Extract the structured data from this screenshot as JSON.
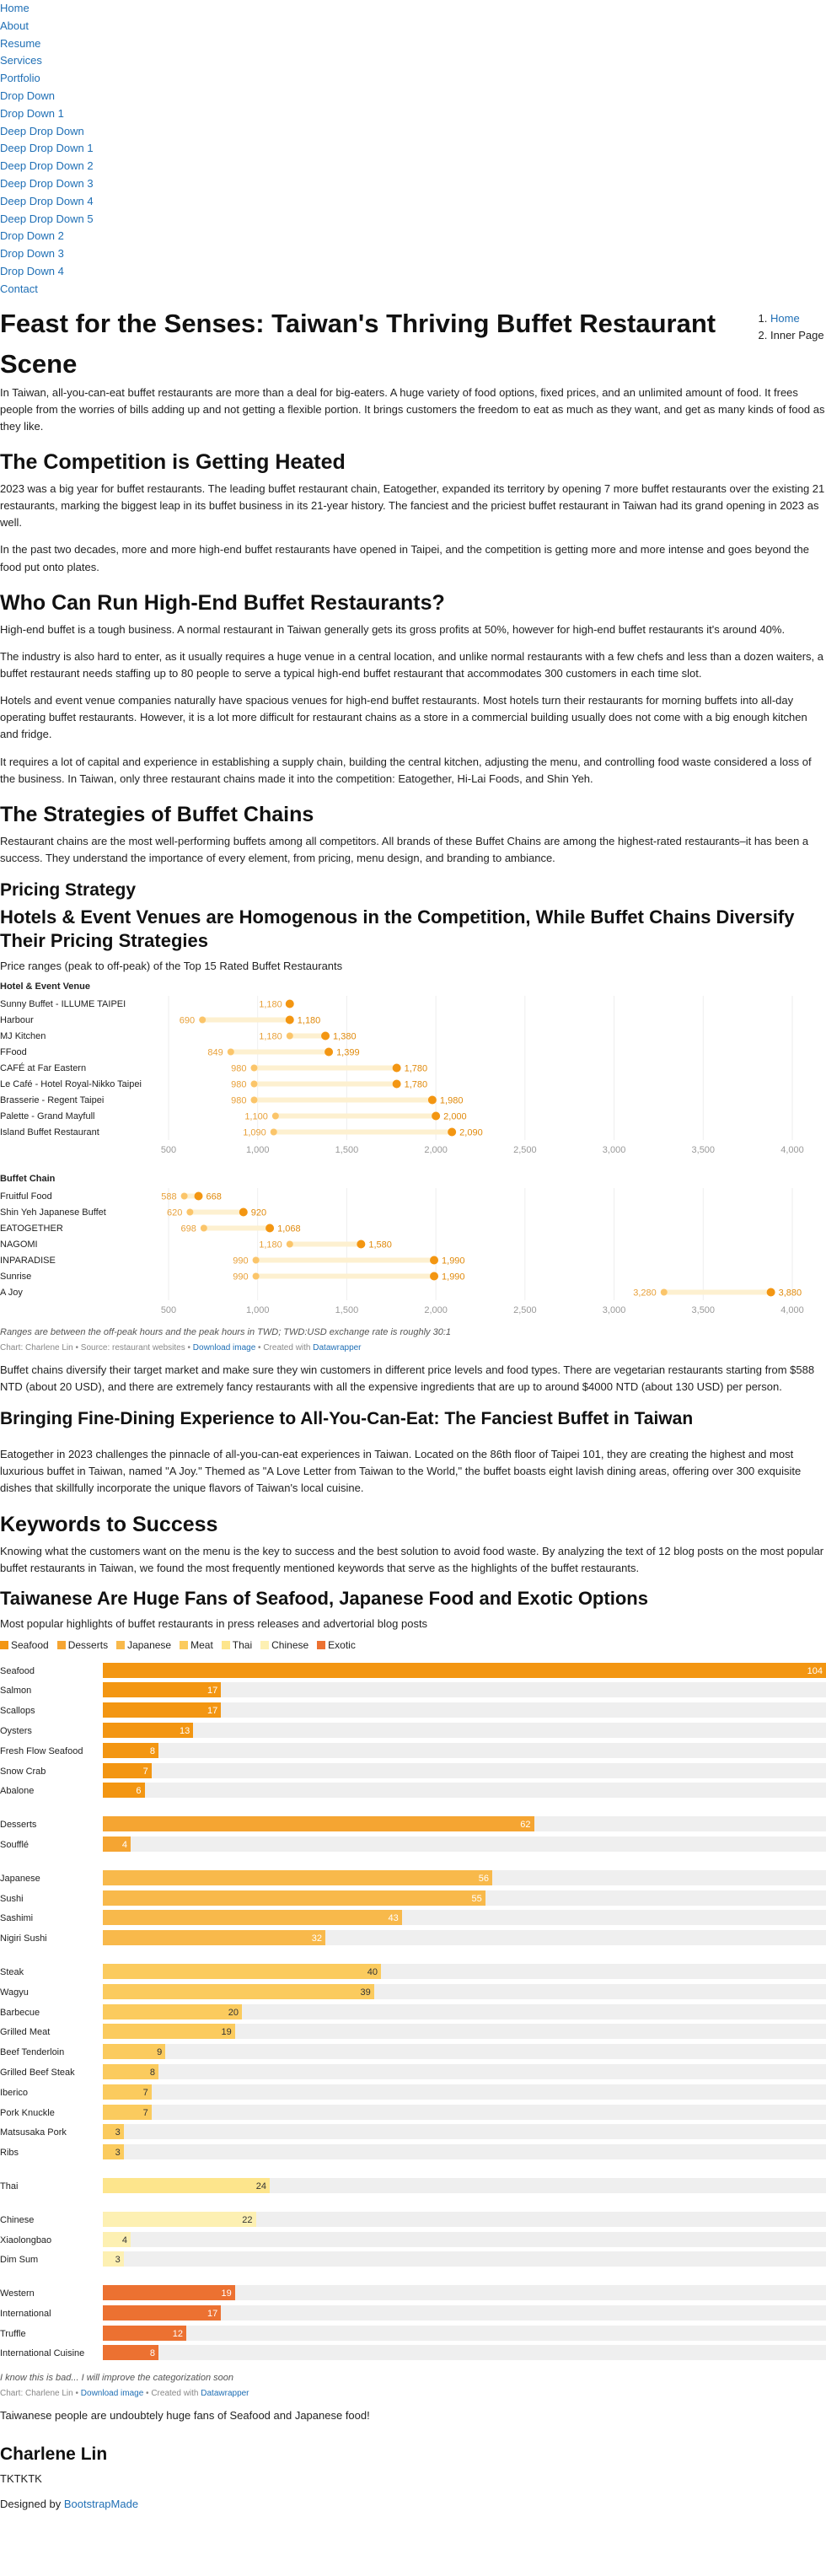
{
  "nav": [
    "Home",
    "About",
    "Resume",
    "Services",
    "Portfolio",
    "Drop Down",
    "Drop Down 1",
    "Deep Drop Down",
    "Deep Drop Down 1",
    "Deep Drop Down 2",
    "Deep Drop Down 3",
    "Deep Drop Down 4",
    "Deep Drop Down 5",
    "Drop Down 2",
    "Drop Down 3",
    "Drop Down 4",
    "Contact"
  ],
  "title": "Feast for the Senses: Taiwan's Thriving Buffet Restaurant Scene",
  "breadcrumbs": [
    "Home",
    "Inner Page"
  ],
  "intro": "In Taiwan, all-you-can-eat buffet restaurants are more than a deal for big-eaters. A huge variety of food options, fixed prices, and an unlimited amount of food. It frees people from the worries of bills adding up and not getting a flexible portion. It brings customers the freedom to eat as much as they want, and get as many kinds of food as they like.",
  "s1": {
    "heading": "The Competition is Getting Heated",
    "p1": "2023 was a big year for buffet restaurants. The leading buffet restaurant chain, Eatogether, expanded its territory by opening 7 more buffet restaurants over the existing 21 restaurants, marking the biggest leap in its buffet business in its 21-year history. The fanciest and the priciest buffet restaurant in Taiwan had its grand opening in 2023 as well.",
    "p2": "In the past two decades, more and more high-end buffet restaurants have opened in Taipei, and the competition is getting more and more intense and goes beyond the food put onto plates."
  },
  "s2": {
    "heading": "Who Can Run High-End Buffet Restaurants?",
    "p1": "High-end buffet is a tough business. A normal restaurant in Taiwan generally gets its gross profits at 50%, however for high-end buffet restaurants it's around 40%.",
    "p2": "The industry is also hard to enter, as it usually requires a huge venue in a central location, and unlike normal restaurants with a few chefs and less than a dozen waiters, a buffet restaurant needs staffing up to 80 people to serve a typical high-end buffet restaurant that accommodates 300 customers in each time slot.",
    "p3": "Hotels and event venue companies naturally have spacious venues for high-end buffet restaurants. Most hotels turn their restaurants for morning buffets into all-day operating buffet restaurants. However, it is a lot more difficult for restaurant chains as a store in a commercial building usually does not come with a big enough kitchen and fridge.",
    "p4": "It requires a lot of capital and experience in establishing a supply chain, building the central kitchen, adjusting the menu, and controlling food waste considered a loss of the business. In Taiwan, only three restaurant chains made it into the competition: Eatogether, Hi-Lai Foods, and Shin Yeh."
  },
  "s3": {
    "heading": "The Strategies of Buffet Chains",
    "p1": "Restaurant chains are the most well-performing buffets among all competitors. All brands of these Buffet Chains are among the highest-rated restaurants–it has been a success. They understand the importance of every element, from pricing, menu design, and branding to ambiance.",
    "pricing_heading": "Pricing Strategy",
    "after_chart": "Buffet chains diversify their target market and make sure they win customers in different price levels and food types. There are vegetarian restaurants starting from $588 NTD (about 20 USD), and there are extremely fancy restaurants with all the expensive ingredients that are up to around $4000 NTD (about 130 USD) per person."
  },
  "s4": {
    "heading": "Bringing Fine-Dining Experience to All-You-Can-Eat: The Fanciest Buffet in Taiwan",
    "p1": "Eatogether in 2023 challenges the pinnacle of all-you-can-eat experiences in Taiwan. Located on the 86th floor of Taipei 101, they are creating the highest and most luxurious buffet in Taiwan, named \"A Joy.\" Themed as \"A Love Letter from Taiwan to the World,\" the buffet boasts eight lavish dining areas, offering over 300 exquisite dishes that skillfully incorporate the unique flavors of Taiwan's local cuisine."
  },
  "s5": {
    "heading": "Keywords to Success",
    "p1": "Knowing what the customers want on the menu is the key to success and the best solution to avoid food waste. By analyzing the text of 12 blog posts on the most popular buffet restaurants in Taiwan, we found the most frequently mentioned keywords that serve as the highlights of the buffet restaurants.",
    "closing": "Taiwanese people are undoubtely huge fans of Seafood and Japanese food!"
  },
  "chart_data": [
    {
      "type": "range-dot",
      "title": "Hotels & Event Venues are Homogenous in the Competition, While Buffet Chains Diversify Their Pricing Strategies",
      "subtitle": "Price ranges (peak to off-peak) of the Top 15 Rated Buffet Restaurants",
      "xlim": [
        500,
        4000
      ],
      "ticks": [
        500,
        1000,
        1500,
        2000,
        2500,
        3000,
        3500,
        4000
      ],
      "tick_labels": [
        "500",
        "1,000",
        "1,500",
        "2,000",
        "2,500",
        "3,000",
        "3,500",
        "4,000"
      ],
      "groups": [
        {
          "name": "Hotel & Event Venue",
          "rows": [
            {
              "name": "Sunny Buffet - ILLUME TAIPEI",
              "low": 1180,
              "high": 1180,
              "low_label": "1,180",
              "high_label": ""
            },
            {
              "name": "Harbour",
              "low": 690,
              "high": 1180,
              "low_label": "690",
              "high_label": "1,180"
            },
            {
              "name": "MJ Kitchen",
              "low": 1180,
              "high": 1380,
              "low_label": "1,180",
              "high_label": "1,380"
            },
            {
              "name": "FFood",
              "low": 849,
              "high": 1399,
              "low_label": "849",
              "high_label": "1,399"
            },
            {
              "name": "CAFÉ at Far Eastern",
              "low": 980,
              "high": 1780,
              "low_label": "980",
              "high_label": "1,780"
            },
            {
              "name": "Le Café - Hotel Royal-Nikko Taipei",
              "low": 980,
              "high": 1780,
              "low_label": "980",
              "high_label": "1,780"
            },
            {
              "name": "Brasserie - Regent Taipei",
              "low": 980,
              "high": 1980,
              "low_label": "980",
              "high_label": "1,980"
            },
            {
              "name": "Palette - Grand Mayfull",
              "low": 1100,
              "high": 2000,
              "low_label": "1,100",
              "high_label": "2,000"
            },
            {
              "name": "Island Buffet Restaurant",
              "low": 1090,
              "high": 2090,
              "low_label": "1,090",
              "high_label": "2,090"
            }
          ]
        },
        {
          "name": "Buffet Chain",
          "rows": [
            {
              "name": "Fruitful Food",
              "low": 588,
              "high": 668,
              "low_label": "588",
              "high_label": "668"
            },
            {
              "name": "Shin Yeh Japanese Buffet",
              "low": 620,
              "high": 920,
              "low_label": "620",
              "high_label": "920"
            },
            {
              "name": "EATOGETHER",
              "low": 698,
              "high": 1068,
              "low_label": "698",
              "high_label": "1,068"
            },
            {
              "name": "NAGOMI",
              "low": 1180,
              "high": 1580,
              "low_label": "1,180",
              "high_label": "1,580"
            },
            {
              "name": "INPARADISE",
              "low": 990,
              "high": 1990,
              "low_label": "990",
              "high_label": "1,990"
            },
            {
              "name": "Sunrise",
              "low": 990,
              "high": 1990,
              "low_label": "990",
              "high_label": "1,990"
            },
            {
              "name": "A Joy",
              "low": 3280,
              "high": 3880,
              "low_label": "3,280",
              "high_label": "3,880"
            }
          ]
        }
      ],
      "colors": {
        "low": "#fbc56a",
        "high": "#f39612",
        "line": "#fdf0d0"
      },
      "note": "Ranges are between the off-peak hours and the peak hours in TWD; TWD:USD exchange rate is roughly 30:1",
      "credit": {
        "prefix": "Chart: Charlene Lin • Source: restaurant websites • ",
        "download": "Download image",
        "mid": " • Created with ",
        "tool": "Datawrapper"
      }
    },
    {
      "type": "bar",
      "title": "Taiwanese Are Huge Fans of Seafood, Japanese Food and Exotic Options",
      "subtitle": "Most popular highlights of buffet restaurants in press releases and advertorial blog posts",
      "xlim": [
        0,
        104
      ],
      "legend": [
        {
          "name": "Seafood",
          "color": "#f39612"
        },
        {
          "name": "Desserts",
          "color": "#f5a532"
        },
        {
          "name": "Japanese",
          "color": "#f8b94b"
        },
        {
          "name": "Meat",
          "color": "#fbcb5e"
        },
        {
          "name": "Thai",
          "color": "#fde58c"
        },
        {
          "name": "Chinese",
          "color": "#fdf0b2"
        },
        {
          "name": "Exotic",
          "color": "#ec7131"
        }
      ],
      "groups": [
        {
          "category": "Seafood",
          "color": "#f39612",
          "bars": [
            {
              "label": "Seafood",
              "value": 104
            },
            {
              "label": "Salmon",
              "value": 17
            },
            {
              "label": "Scallops",
              "value": 17
            },
            {
              "label": "Oysters",
              "value": 13
            },
            {
              "label": "Fresh Flow Seafood",
              "value": 8
            },
            {
              "label": "Snow Crab",
              "value": 7
            },
            {
              "label": "Abalone",
              "value": 6
            }
          ]
        },
        {
          "category": "Desserts",
          "color": "#f5a532",
          "bars": [
            {
              "label": "Desserts",
              "value": 62
            },
            {
              "label": "Soufflé",
              "value": 4
            }
          ]
        },
        {
          "category": "Japanese",
          "color": "#f8b94b",
          "bars": [
            {
              "label": "Japanese",
              "value": 56
            },
            {
              "label": "Sushi",
              "value": 55
            },
            {
              "label": "Sashimi",
              "value": 43
            },
            {
              "label": "Nigiri Sushi",
              "value": 32
            }
          ]
        },
        {
          "category": "Meat",
          "color": "#fbcb5e",
          "bars": [
            {
              "label": "Steak",
              "value": 40
            },
            {
              "label": "Wagyu",
              "value": 39
            },
            {
              "label": "Barbecue",
              "value": 20
            },
            {
              "label": "Grilled Meat",
              "value": 19
            },
            {
              "label": "Beef Tenderloin",
              "value": 9
            },
            {
              "label": "Grilled Beef Steak",
              "value": 8
            },
            {
              "label": "Iberico",
              "value": 7
            },
            {
              "label": "Pork Knuckle",
              "value": 7
            },
            {
              "label": "Matsusaka Pork",
              "value": 3
            },
            {
              "label": "Ribs",
              "value": 3
            }
          ]
        },
        {
          "category": "Thai",
          "color": "#fde58c",
          "bars": [
            {
              "label": "Thai",
              "value": 24
            }
          ]
        },
        {
          "category": "Chinese",
          "color": "#fdf0b2",
          "bars": [
            {
              "label": "Chinese",
              "value": 22
            },
            {
              "label": "Xiaolongbao",
              "value": 4
            },
            {
              "label": "Dim Sum",
              "value": 3
            }
          ]
        },
        {
          "category": "Exotic",
          "color": "#ec7131",
          "bars": [
            {
              "label": "Western",
              "value": 19
            },
            {
              "label": "International",
              "value": 17
            },
            {
              "label": "Truffle",
              "value": 12
            },
            {
              "label": "International Cuisine",
              "value": 8
            }
          ]
        }
      ],
      "note": "I know this is bad... I will improve the categorization soon",
      "credit": {
        "prefix": "Chart: Charlene Lin • ",
        "download": "Download image",
        "mid": " • Created with ",
        "tool": "Datawrapper"
      }
    }
  ],
  "author": {
    "name": "Charlene Lin",
    "bio": "TKTKTK"
  },
  "footer": {
    "prefix": "Designed by ",
    "link": "BootstrapMade"
  }
}
